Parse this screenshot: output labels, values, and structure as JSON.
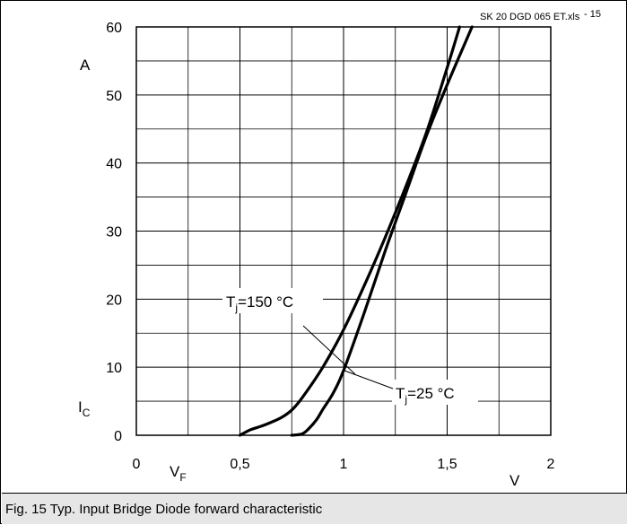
{
  "file_label": "SK 20 DGD 065 ET.xls",
  "file_suffix": "- 15",
  "caption": "Fig. 15 Typ. Input Bridge Diode forward characteristic",
  "chart_data": {
    "type": "line",
    "xlim": [
      0,
      2
    ],
    "ylim": [
      0,
      60
    ],
    "x_ticks": [
      0,
      0.5,
      1,
      1.5,
      2
    ],
    "x_tick_labels": [
      "0",
      "0,5",
      "1",
      "1,5",
      "2"
    ],
    "y_ticks": [
      0,
      10,
      20,
      30,
      40,
      50,
      60
    ],
    "y_tick_labels": [
      "0",
      "10",
      "20",
      "30",
      "40",
      "50",
      "60"
    ],
    "x_unit": "V",
    "y_unit": "A",
    "xlabel": {
      "main": "V",
      "sub": "F"
    },
    "ylabel": {
      "main": "I",
      "sub": "C"
    },
    "grid": true,
    "series": [
      {
        "name": "Tj=150°C",
        "label_main": "T",
        "label_sub": "j",
        "label_rest": "=150 °C",
        "x": [
          0.5,
          0.55,
          0.6,
          0.65,
          0.7,
          0.75,
          0.8,
          0.9,
          1.0,
          1.1,
          1.2,
          1.3,
          1.4,
          1.5,
          1.56
        ],
        "y": [
          0,
          0.8,
          1.3,
          1.9,
          2.6,
          3.7,
          5.5,
          10,
          15.5,
          22,
          29,
          36.5,
          44.5,
          54,
          60
        ]
      },
      {
        "name": "Tj=25°C",
        "label_main": "T",
        "label_sub": "j",
        "label_rest": "=25 °C",
        "x": [
          0.75,
          0.8,
          0.83,
          0.87,
          0.9,
          0.95,
          1.0,
          1.1,
          1.2,
          1.3,
          1.4,
          1.5,
          1.62
        ],
        "y": [
          0,
          0.2,
          0.9,
          2.3,
          3.8,
          6.2,
          9.5,
          18,
          27,
          35.5,
          44,
          51.5,
          60
        ]
      }
    ]
  }
}
